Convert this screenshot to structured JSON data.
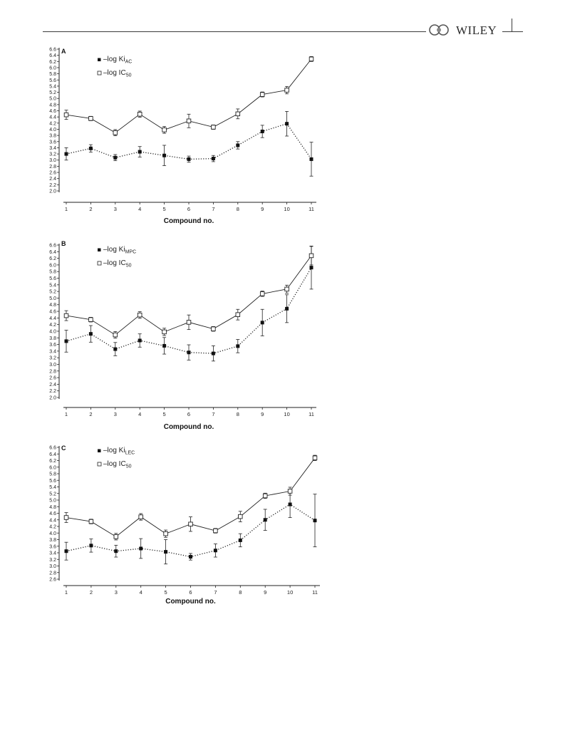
{
  "header": {
    "publisher": "WILEY"
  },
  "chart_data": [
    {
      "type": "line",
      "panel": "A",
      "xlabel": "Compound no.",
      "x": [
        1,
        2,
        3,
        4,
        5,
        6,
        7,
        8,
        9,
        10,
        11
      ],
      "ylim": [
        2.0,
        6.6
      ],
      "yticks": [
        "2.0",
        "2.2",
        "2.4",
        "2.6",
        "2.8",
        "3.0",
        "3.2",
        "3.4",
        "3.6",
        "3.8",
        "4.0",
        "4.2",
        "4.4",
        "4.6",
        "4.8",
        "5.0",
        "5.2",
        "5.4",
        "5.6",
        "5.8",
        "6.0",
        "6.2",
        "6.4",
        "6.6"
      ],
      "legend_position": "top-left",
      "series": [
        {
          "legend_main": "–log Ki",
          "legend_sub": "AC",
          "marker": "filled-square",
          "line": "dotted",
          "values": [
            3.2,
            3.38,
            3.08,
            3.27,
            3.15,
            3.03,
            3.05,
            3.48,
            3.93,
            4.18,
            3.03
          ],
          "errors": [
            0.2,
            0.12,
            0.1,
            0.17,
            0.33,
            0.1,
            0.1,
            0.12,
            0.2,
            0.4,
            0.55
          ]
        },
        {
          "legend_main": "–log IC",
          "legend_sub": "50",
          "marker": "open-square",
          "line": "solid",
          "values": [
            4.47,
            4.35,
            3.89,
            4.49,
            3.98,
            4.27,
            4.07,
            4.5,
            5.13,
            5.27,
            6.28
          ],
          "errors": [
            0.15,
            0.07,
            0.1,
            0.1,
            0.11,
            0.22,
            0.07,
            0.16,
            0.08,
            0.12,
            0.08
          ]
        }
      ]
    },
    {
      "type": "line",
      "panel": "B",
      "xlabel": "Compound no.",
      "x": [
        1,
        2,
        3,
        4,
        5,
        6,
        7,
        8,
        9,
        10,
        11
      ],
      "ylim": [
        2.0,
        6.6
      ],
      "yticks": [
        "2.0",
        "2.2",
        "2.4",
        "2.6",
        "2.8",
        "3.0",
        "3.2",
        "3.4",
        "3.6",
        "3.8",
        "4.0",
        "4.2",
        "4.4",
        "4.6",
        "4.8",
        "5.0",
        "5.2",
        "5.4",
        "5.6",
        "5.8",
        "6.0",
        "6.2",
        "6.4",
        "6.6"
      ],
      "legend_position": "top-left",
      "series": [
        {
          "legend_main": "–log Ki",
          "legend_sub": "MPC",
          "marker": "filled-square",
          "line": "dotted",
          "values": [
            3.7,
            3.92,
            3.46,
            3.72,
            3.56,
            3.36,
            3.33,
            3.55,
            4.26,
            4.68,
            5.92
          ],
          "errors": [
            0.33,
            0.25,
            0.2,
            0.2,
            0.25,
            0.23,
            0.23,
            0.2,
            0.4,
            0.42,
            0.65
          ]
        },
        {
          "legend_main": "–log IC",
          "legend_sub": "50",
          "marker": "open-square",
          "line": "solid",
          "values": [
            4.47,
            4.35,
            3.89,
            4.49,
            3.98,
            4.27,
            4.07,
            4.5,
            5.13,
            5.27,
            6.28
          ],
          "errors": [
            0.15,
            0.07,
            0.1,
            0.1,
            0.11,
            0.22,
            0.07,
            0.16,
            0.08,
            0.12,
            0.28
          ]
        }
      ]
    },
    {
      "type": "line",
      "panel": "C",
      "xlabel": "Compound no.",
      "x": [
        1,
        2,
        3,
        4,
        5,
        6,
        7,
        8,
        9,
        10,
        11
      ],
      "ylim": [
        2.6,
        6.6
      ],
      "yticks": [
        "2.6",
        "2.8",
        "3.0",
        "3.2",
        "3.4",
        "3.6",
        "3.8",
        "4.0",
        "4.2",
        "4.4",
        "4.6",
        "4.8",
        "5.0",
        "5.2",
        "5.4",
        "5.6",
        "5.8",
        "6.0",
        "6.2",
        "6.4",
        "6.6"
      ],
      "legend_position": "top-left",
      "series": [
        {
          "legend_main": "–log Ki",
          "legend_sub": "LEC",
          "marker": "filled-square",
          "line": "dotted",
          "values": [
            3.45,
            3.62,
            3.45,
            3.53,
            3.43,
            3.28,
            3.47,
            3.78,
            4.4,
            4.87,
            4.38
          ],
          "errors": [
            0.27,
            0.2,
            0.18,
            0.3,
            0.37,
            0.1,
            0.2,
            0.2,
            0.32,
            0.4,
            0.8
          ]
        },
        {
          "legend_main": "–log IC",
          "legend_sub": "50",
          "marker": "open-square",
          "line": "solid",
          "values": [
            4.47,
            4.35,
            3.89,
            4.49,
            3.98,
            4.27,
            4.07,
            4.5,
            5.13,
            5.27,
            6.28
          ],
          "errors": [
            0.15,
            0.07,
            0.1,
            0.1,
            0.11,
            0.22,
            0.07,
            0.16,
            0.08,
            0.12,
            0.08
          ]
        }
      ]
    }
  ]
}
